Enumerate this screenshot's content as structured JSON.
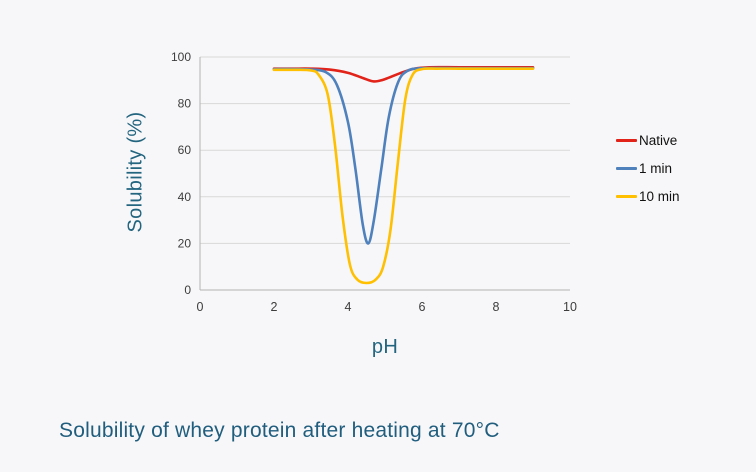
{
  "page": {
    "background": "#f7f7f9"
  },
  "caption": {
    "text": "Solubility of whey protein after heating at 70°C",
    "color": "#215e7e"
  },
  "chart_data": {
    "type": "line",
    "title": "",
    "xlabel": "pH",
    "ylabel": "Solubility (%)",
    "axis_title_color": "#23657f",
    "tick_label_color": "#3d3d3d",
    "gridline_color": "#d9d9d9",
    "axis_line_color": "#b3b3b3",
    "xlim": [
      0,
      10
    ],
    "ylim": [
      0,
      100
    ],
    "xticks": [
      0,
      2,
      4,
      6,
      8,
      10
    ],
    "yticks": [
      0,
      20,
      40,
      60,
      80,
      100
    ],
    "grid": "horizontal",
    "legend_position": "right",
    "series": [
      {
        "name": "Native",
        "color": "#e2231a",
        "points": [
          [
            2,
            95
          ],
          [
            2.5,
            95
          ],
          [
            3,
            95
          ],
          [
            3.5,
            94.6
          ],
          [
            4,
            93.2
          ],
          [
            4.4,
            91
          ],
          [
            4.7,
            89.5
          ],
          [
            5,
            90.5
          ],
          [
            5.4,
            93
          ],
          [
            5.8,
            95
          ],
          [
            6.2,
            95.6
          ],
          [
            7,
            95.6
          ],
          [
            8,
            95.6
          ],
          [
            9,
            95.6
          ]
        ]
      },
      {
        "name": "1 min",
        "color": "#4f81bd",
        "points": [
          [
            2,
            94.8
          ],
          [
            2.6,
            94.8
          ],
          [
            3,
            94.6
          ],
          [
            3.4,
            93.5
          ],
          [
            3.7,
            88
          ],
          [
            4,
            72
          ],
          [
            4.2,
            52
          ],
          [
            4.4,
            28
          ],
          [
            4.55,
            20
          ],
          [
            4.7,
            30
          ],
          [
            4.9,
            52
          ],
          [
            5.1,
            74
          ],
          [
            5.35,
            89
          ],
          [
            5.6,
            94
          ],
          [
            6,
            95.2
          ],
          [
            7,
            95.2
          ],
          [
            8,
            95.2
          ],
          [
            9,
            95.2
          ]
        ]
      },
      {
        "name": "10 min",
        "color": "#fec000",
        "points": [
          [
            2,
            94.5
          ],
          [
            2.6,
            94.5
          ],
          [
            3,
            94.2
          ],
          [
            3.2,
            92.5
          ],
          [
            3.45,
            84
          ],
          [
            3.65,
            62
          ],
          [
            3.85,
            32
          ],
          [
            4.05,
            11
          ],
          [
            4.25,
            4.5
          ],
          [
            4.5,
            3
          ],
          [
            4.75,
            4.5
          ],
          [
            4.95,
            10
          ],
          [
            5.15,
            26
          ],
          [
            5.35,
            55
          ],
          [
            5.55,
            82
          ],
          [
            5.75,
            92.5
          ],
          [
            6,
            94.8
          ],
          [
            6.4,
            95
          ],
          [
            7,
            95
          ],
          [
            8,
            95
          ],
          [
            9,
            95
          ]
        ]
      }
    ]
  }
}
